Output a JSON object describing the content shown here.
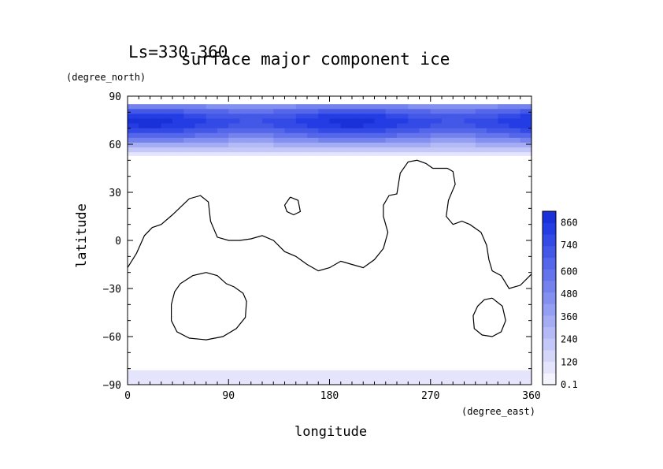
{
  "chart_data": {
    "type": "heatmap",
    "season_label": "Ls=330-360",
    "title": "surface major component ice",
    "xlabel": "longitude",
    "xunit": "(degree_east)",
    "ylabel": "latitude",
    "yunit": "(degree_north)",
    "xlim": [
      0,
      360
    ],
    "ylim": [
      -90,
      90
    ],
    "xticks": [
      "0",
      "90",
      "180",
      "270",
      "360"
    ],
    "yticks": [
      "90",
      "60",
      "30",
      "0",
      "-30",
      "-60",
      "-90"
    ],
    "colorbar": {
      "labels": [
        "860",
        "740",
        "600",
        "480",
        "360",
        "240",
        "120",
        "0.1"
      ],
      "levels": [
        0.1,
        60,
        120,
        180,
        240,
        300,
        360,
        420,
        480,
        540,
        600,
        670,
        740,
        800,
        860,
        920
      ],
      "colors": [
        "#f4f4ff",
        "#e4e4fc",
        "#d4d6fa",
        "#c4c8f8",
        "#b4baf6",
        "#a4acf4",
        "#949ef2",
        "#8490f0",
        "#7482ee",
        "#6474ec",
        "#5466ea",
        "#4458e8",
        "#344ae6",
        "#243ce4",
        "#1a30d8"
      ]
    },
    "north_cap_profile": {
      "lat": [
        85,
        82,
        79,
        76,
        73,
        70,
        67,
        64,
        61,
        58,
        55,
        53
      ],
      "values": [
        420,
        620,
        760,
        860,
        880,
        820,
        700,
        560,
        420,
        280,
        150,
        60
      ]
    },
    "south_cap": {
      "lat_range": [
        -90,
        -81
      ],
      "value": 60
    },
    "continent_outlines": [
      [
        [
          0,
          -17
        ],
        [
          8,
          -8
        ],
        [
          15,
          3
        ],
        [
          22,
          8
        ],
        [
          30,
          10
        ],
        [
          40,
          16
        ],
        [
          55,
          26
        ],
        [
          65,
          28
        ],
        [
          72,
          24
        ],
        [
          74,
          12
        ],
        [
          80,
          2
        ],
        [
          90,
          0
        ],
        [
          100,
          0
        ],
        [
          110,
          1
        ],
        [
          120,
          3
        ],
        [
          130,
          0
        ],
        [
          140,
          -7
        ],
        [
          150,
          -10
        ],
        [
          160,
          -15
        ],
        [
          170,
          -19
        ],
        [
          180,
          -17
        ],
        [
          190,
          -13
        ],
        [
          200,
          -15
        ],
        [
          210,
          -17
        ],
        [
          220,
          -12
        ],
        [
          228,
          -5
        ],
        [
          232,
          5
        ],
        [
          228,
          15
        ],
        [
          228,
          22
        ],
        [
          233,
          28
        ],
        [
          240,
          29
        ],
        [
          243,
          42
        ],
        [
          250,
          49
        ],
        [
          258,
          50
        ],
        [
          266,
          48
        ],
        [
          272,
          45
        ],
        [
          285,
          45
        ],
        [
          290,
          43
        ],
        [
          292,
          35
        ],
        [
          286,
          25
        ],
        [
          284,
          15
        ],
        [
          290,
          10
        ],
        [
          298,
          12
        ],
        [
          305,
          10
        ],
        [
          315,
          5
        ],
        [
          320,
          -3
        ],
        [
          322,
          -12
        ],
        [
          325,
          -19
        ],
        [
          333,
          -22
        ],
        [
          340,
          -30
        ],
        [
          350,
          -28
        ],
        [
          360,
          -21
        ]
      ],
      [
        [
          70,
          -20
        ],
        [
          58,
          -22
        ],
        [
          47,
          -27
        ],
        [
          42,
          -32
        ],
        [
          39,
          -40
        ],
        [
          39,
          -50
        ],
        [
          44,
          -57
        ],
        [
          55,
          -61
        ],
        [
          70,
          -62
        ],
        [
          85,
          -60
        ],
        [
          97,
          -55
        ],
        [
          105,
          -48
        ],
        [
          106,
          -38
        ],
        [
          103,
          -33
        ],
        [
          95,
          -29
        ],
        [
          88,
          -27
        ],
        [
          80,
          -22
        ],
        [
          70,
          -20
        ]
      ],
      [
        [
          145,
          27
        ],
        [
          152,
          25
        ],
        [
          154,
          18
        ],
        [
          148,
          16
        ],
        [
          142,
          18
        ],
        [
          140,
          22
        ],
        [
          145,
          27
        ]
      ],
      [
        [
          325,
          -36
        ],
        [
          318,
          -37
        ],
        [
          312,
          -41
        ],
        [
          308,
          -47
        ],
        [
          309,
          -55
        ],
        [
          316,
          -59
        ],
        [
          325,
          -60
        ],
        [
          333,
          -57
        ],
        [
          337,
          -50
        ],
        [
          334,
          -41
        ],
        [
          325,
          -36
        ]
      ]
    ]
  }
}
